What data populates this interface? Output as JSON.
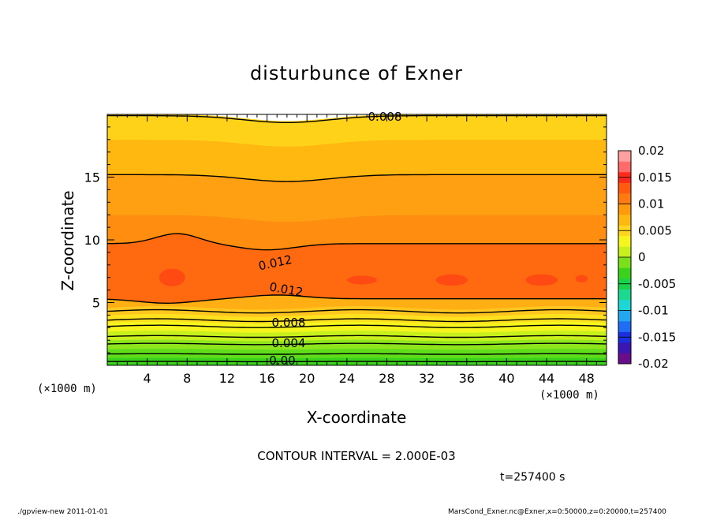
{
  "chart_data": {
    "type": "heatmap",
    "title": "disturbunce of Exner",
    "xlabel": "X-coordinate",
    "ylabel": "Z-coordinate",
    "x_unit": "(×1000 m)",
    "x_unit_right": "(×1000 m)",
    "z_unit": "(×1000 m)",
    "xlim": [
      0,
      50
    ],
    "ylim": [
      0,
      20
    ],
    "x_ticks": [
      4,
      8,
      12,
      16,
      20,
      24,
      28,
      32,
      36,
      40,
      44,
      48
    ],
    "y_ticks": [
      5,
      10,
      15
    ],
    "colorbar": {
      "range": [
        -0.02,
        0.02
      ],
      "ticks": [
        "0.02",
        "0.015",
        "0.01",
        "0.005",
        "0",
        "-0.005",
        "-0.01",
        "-0.015",
        "-0.02"
      ],
      "colors": [
        "#6a0d8a",
        "#3b16b3",
        "#1a2fe0",
        "#1f6cf5",
        "#22a7f0",
        "#1fd6d6",
        "#1bd98f",
        "#1ad24a",
        "#3ad21b",
        "#7ae01a",
        "#c8f01c",
        "#f6f51e",
        "#ffd51f",
        "#ffb80f",
        "#ff9a0d",
        "#ff7a10",
        "#ff5a10",
        "#ff2a1a",
        "#ff6a6a",
        "#ffa0a0"
      ]
    },
    "contour_labels": [
      "0.008",
      "0.012",
      "0.012",
      "0.008",
      "0.004",
      "0.00"
    ],
    "annotation": "CONTOUR INTERVAL = 2.000E-03",
    "time_label": "t=257400 s",
    "footer_left": "./gpview-new  2011-01-01",
    "footer_right": "MarsCond_Exner.nc@Exner,x=0:50000,z=0:20000,t=257400",
    "fill_bands": [
      {
        "z0": 0.0,
        "z1": 0.6,
        "color": "#3ad21b"
      },
      {
        "z0": 0.6,
        "z1": 1.3,
        "color": "#5fdc1a"
      },
      {
        "z0": 1.3,
        "z1": 2.0,
        "color": "#8ee51c"
      },
      {
        "z0": 2.0,
        "z1": 2.7,
        "color": "#c8f01c"
      },
      {
        "z0": 2.7,
        "z1": 3.4,
        "color": "#f6f51e"
      },
      {
        "z0": 3.4,
        "z1": 4.0,
        "color": "#ffe11f"
      },
      {
        "z0": 4.0,
        "z1": 4.6,
        "color": "#ffc61f"
      },
      {
        "z0": 4.6,
        "z1": 5.3,
        "color": "#ffae14"
      },
      {
        "z0": 5.3,
        "z1": 9.7,
        "color": "#ff6a10"
      },
      {
        "z0": 9.7,
        "z1": 12.0,
        "color": "#ff8d10"
      },
      {
        "z0": 12.0,
        "z1": 15.2,
        "color": "#ffa012"
      },
      {
        "z0": 15.2,
        "z1": 18.0,
        "color": "#ffb80f"
      },
      {
        "z0": 18.0,
        "z1": 20.0,
        "color": "#ffd21a"
      }
    ],
    "contour_lines_z": [
      0.3,
      0.9,
      1.7,
      2.3,
      3.1,
      3.6,
      4.3,
      5.3,
      9.7,
      15.2,
      19.9
    ],
    "peak_cells": [
      {
        "x": 6.5,
        "z": 7.0,
        "rx": 1.3,
        "rz": 0.7
      },
      {
        "x": 25.5,
        "z": 6.8,
        "rx": 1.5,
        "rz": 0.35
      },
      {
        "x": 34.5,
        "z": 6.8,
        "rx": 1.6,
        "rz": 0.45
      },
      {
        "x": 43.5,
        "z": 6.8,
        "rx": 1.6,
        "rz": 0.45
      },
      {
        "x": 47.5,
        "z": 6.9,
        "rx": 0.6,
        "rz": 0.3
      }
    ]
  }
}
